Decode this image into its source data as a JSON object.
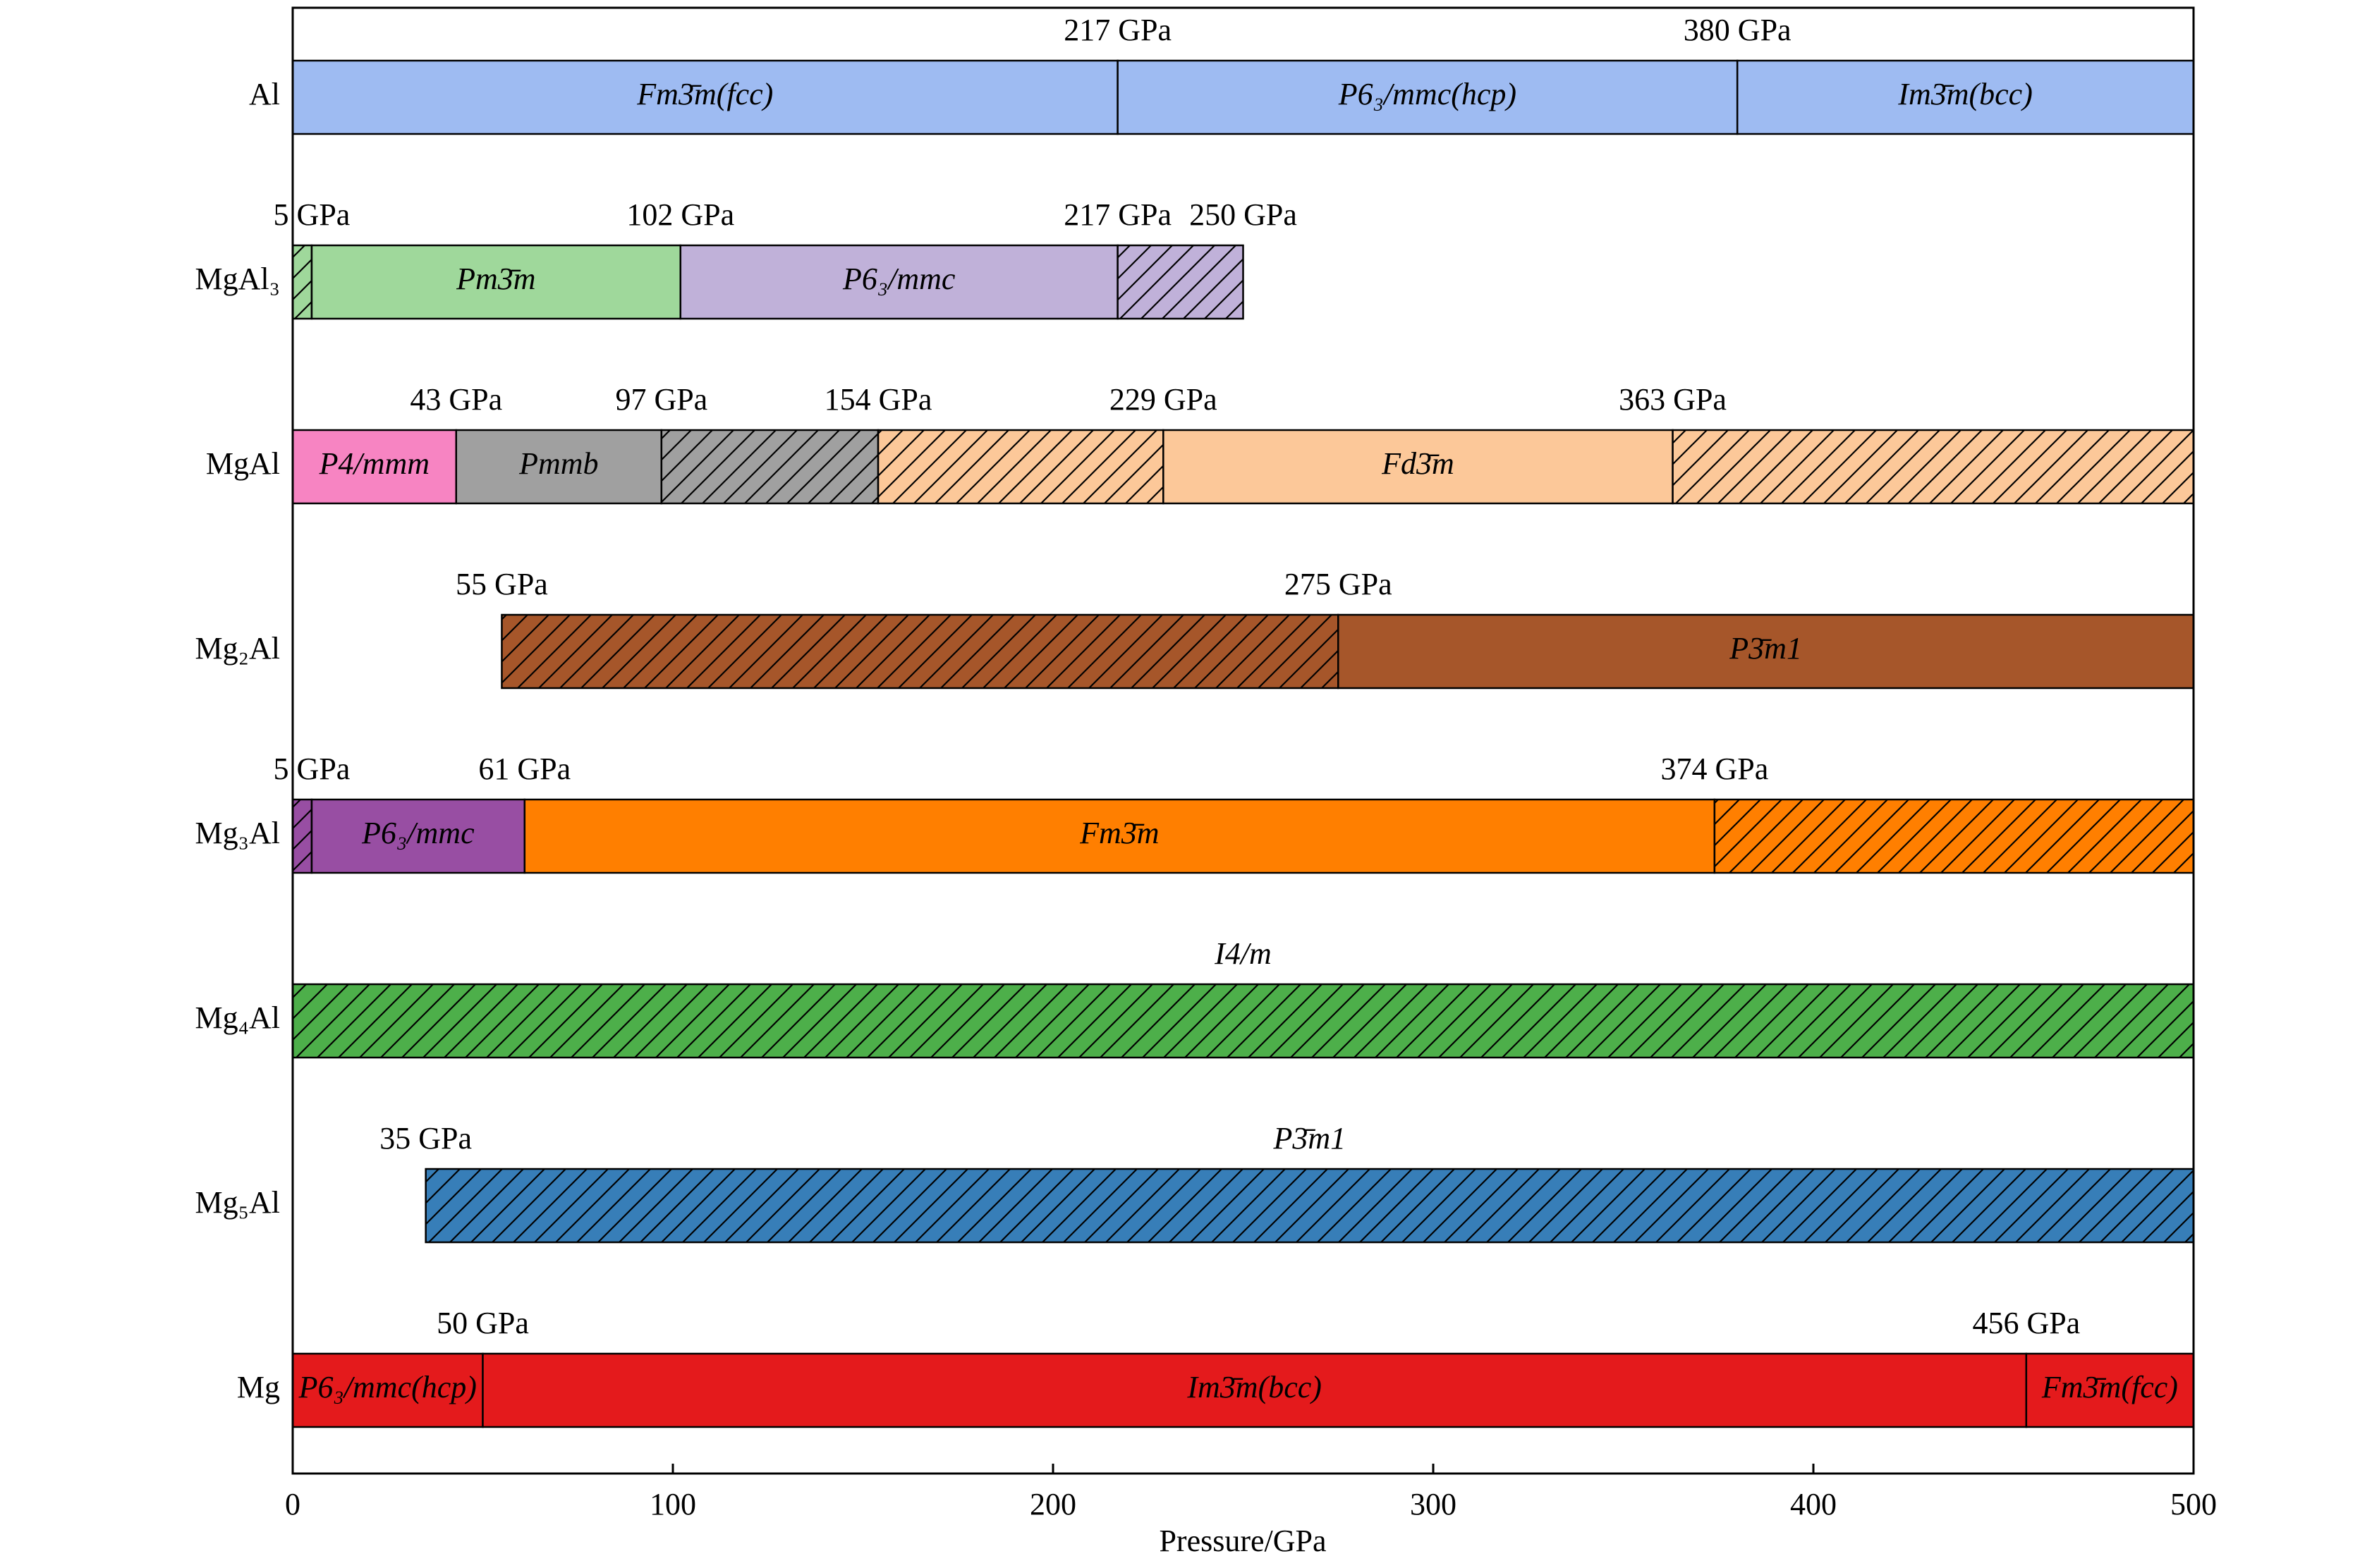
{
  "chart_data": {
    "type": "phase-bar",
    "xlabel": "Pressure/GPa",
    "xlim": [
      0,
      500
    ],
    "xticks": [
      0,
      100,
      200,
      300,
      400,
      500
    ],
    "rows": [
      {
        "name": "Al",
        "start": 0,
        "segments": [
          {
            "phase": "Fm3̄m(fcc)",
            "end": 217,
            "end_label": "217 GPa",
            "color": "#9ebbf2",
            "hatch": false
          },
          {
            "phase": "P6₃/mmc(hcp)",
            "end": 380,
            "end_label": "380 GPa",
            "color": "#9ebbf2",
            "hatch": false
          },
          {
            "phase": "Im3̄m(bcc)",
            "end": 500,
            "color": "#9ebbf2",
            "hatch": false
          }
        ]
      },
      {
        "name": "MgAl₃",
        "start": 0,
        "segments": [
          {
            "end": 5,
            "end_label": "5 GPa",
            "color": "#9fd89b",
            "hatch": true
          },
          {
            "phase": "Pm3̄m",
            "end": 102,
            "end_label": "102 GPa",
            "color": "#9fd89b",
            "hatch": false
          },
          {
            "phase": "P6₃/mmc",
            "end": 217,
            "end_label": "217 GPa",
            "color": "#c0b1d9",
            "hatch": false
          },
          {
            "end": 250,
            "end_label": "250 GPa",
            "color": "#c0b1d9",
            "hatch": true
          }
        ]
      },
      {
        "name": "MgAl",
        "start": 0,
        "segments": [
          {
            "phase": "P4/mmm",
            "end": 43,
            "end_label": "43 GPa",
            "color": "#f784c2",
            "hatch": false
          },
          {
            "phase": "Pmmb",
            "end": 97,
            "end_label": "97 GPa",
            "color": "#a0a0a0",
            "hatch": false
          },
          {
            "end": 154,
            "end_label": "154 GPa",
            "color": "#a0a0a0",
            "hatch": true
          },
          {
            "end": 229,
            "end_label": "229 GPa",
            "color": "#fcc899",
            "hatch": true
          },
          {
            "phase": "Fd3̄m",
            "end": 363,
            "end_label": "363 GPa",
            "color": "#fcc899",
            "hatch": false
          },
          {
            "end": 500,
            "color": "#fcc899",
            "hatch": true
          }
        ]
      },
      {
        "name": "Mg₂Al",
        "start": 55,
        "start_label": "55 GPa",
        "segments": [
          {
            "end": 275,
            "end_label": "275 GPa",
            "color": "#a6562a",
            "hatch": true
          },
          {
            "phase": "P3̄m1",
            "end": 500,
            "color": "#a6562a",
            "hatch": false,
            "label_color": "#ffffff"
          }
        ]
      },
      {
        "name": "Mg₃Al",
        "start": 0,
        "segments": [
          {
            "end": 5,
            "end_label": "5 GPa",
            "color": "#984ea3",
            "hatch": true
          },
          {
            "phase": "P6₃/mmc",
            "end": 61,
            "end_label": "61 GPa",
            "color": "#984ea3",
            "hatch": false,
            "label_color": "#ffdd33"
          },
          {
            "phase": "Fm3̄m",
            "end": 374,
            "end_label": "374 GPa",
            "color": "#ff7f00",
            "hatch": false
          },
          {
            "end": 500,
            "color": "#ff7f00",
            "hatch": true
          }
        ]
      },
      {
        "name": "Mg₄Al",
        "start": 0,
        "segments": [
          {
            "phase": "I4/m",
            "end": 500,
            "color": "#4daf4a",
            "hatch": true
          }
        ]
      },
      {
        "name": "Mg₅Al",
        "start": 35,
        "start_label": "35 GPa",
        "segments": [
          {
            "phase": "P3̄m1",
            "end": 500,
            "color": "#377eb8",
            "hatch": true
          }
        ]
      },
      {
        "name": "Mg",
        "start": 0,
        "segments": [
          {
            "phase": "P6₃/mmc(hcp)",
            "end": 50,
            "end_label": "50 GPa",
            "color": "#e41a1c",
            "hatch": false,
            "label_color": "#ffffff"
          },
          {
            "phase": "Im3̄m(bcc)",
            "end": 456,
            "end_label": "456 GPa",
            "color": "#e41a1c",
            "hatch": false,
            "label_color": "#ffffff"
          },
          {
            "phase": "Fm3̄m(fcc)",
            "end": 500,
            "color": "#e41a1c",
            "hatch": false,
            "label_color": "#ffffff"
          }
        ]
      }
    ]
  }
}
